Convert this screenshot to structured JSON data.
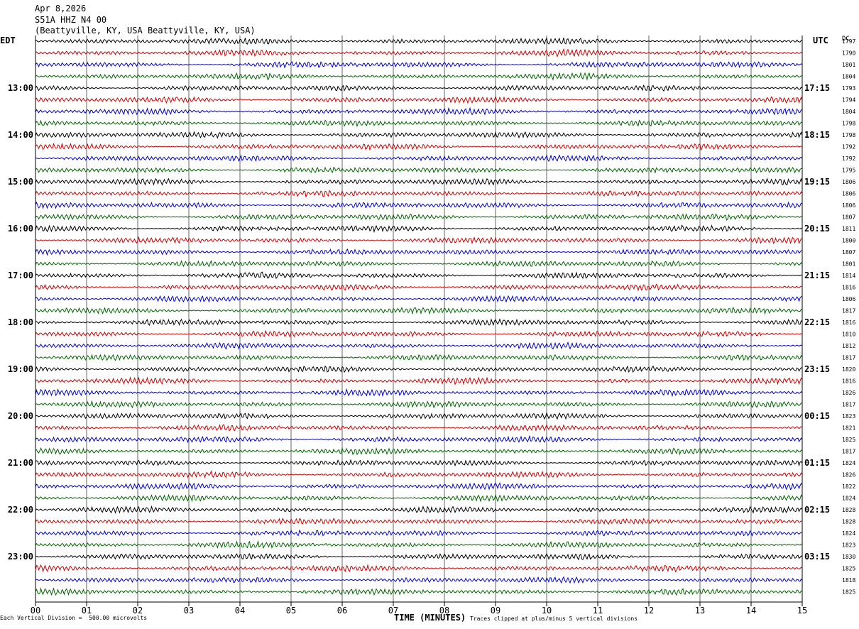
{
  "header": {
    "date": "Apr 8,2026",
    "station": "S51A HHZ N4 00",
    "location": "(Beattyville, KY, USA Beattyville, KY, USA)"
  },
  "labels": {
    "left_tz": "EDT",
    "right_tz": "UTC",
    "dc": "DC"
  },
  "footer": {
    "left": "Each Vertical Division =  500.00 microvolts",
    "mid": "TIME (MINUTES)",
    "right": "Traces clipped at plus/minus 5 vertical divisions"
  },
  "colors": {
    "trace_cycle": [
      "#000000",
      "#cc0000",
      "#0000cc",
      "#006600"
    ],
    "grid": "#000000"
  },
  "chart_data": {
    "type": "line",
    "title": "S51A HHZ N4 00",
    "xlabel": "TIME (MINUTES)",
    "xlim": [
      0,
      15
    ],
    "x_ticks": [
      "00",
      "01",
      "02",
      "03",
      "04",
      "05",
      "06",
      "07",
      "08",
      "09",
      "10",
      "11",
      "12",
      "13",
      "14",
      "15"
    ],
    "edt_hour_labels": [
      "13:00",
      "14:00",
      "15:00",
      "16:00",
      "17:00",
      "18:00",
      "19:00",
      "20:00",
      "21:00",
      "22:00",
      "23:00"
    ],
    "utc_hour_labels": [
      "17:15",
      "18:15",
      "19:15",
      "20:15",
      "21:15",
      "22:15",
      "23:15",
      "00:15",
      "01:15",
      "02:15",
      "03:15"
    ],
    "dc_offsets": [
      1797,
      1790,
      1801,
      1804,
      1793,
      1794,
      1804,
      1798,
      1798,
      1792,
      1792,
      1795,
      1806,
      1806,
      1806,
      1807,
      1811,
      1800,
      1807,
      1801,
      1814,
      1816,
      1806,
      1817,
      1816,
      1810,
      1812,
      1817,
      1820,
      1816,
      1826,
      1817,
      1823,
      1821,
      1825,
      1817,
      1824,
      1826,
      1822,
      1824,
      1828,
      1828,
      1824,
      1823,
      1830,
      1825,
      1818,
      1825
    ],
    "trace_count": 48,
    "minutes_per_trace": 15,
    "vertical_division_microvolts": 500.0,
    "clip_divisions": 5
  }
}
